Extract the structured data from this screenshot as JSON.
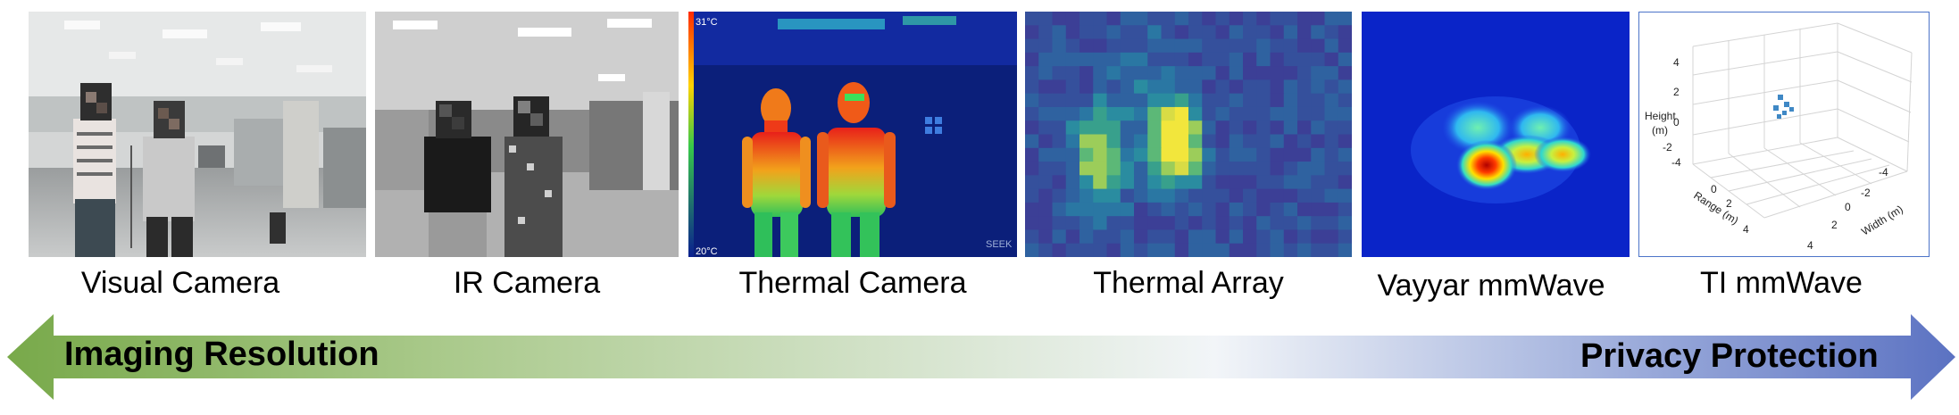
{
  "panels": [
    {
      "id": "visual",
      "caption": "Visual Camera"
    },
    {
      "id": "ir",
      "caption": "IR Camera"
    },
    {
      "id": "thermal-camera",
      "caption": "Thermal Camera",
      "temp_max": "31°C",
      "temp_min": "20°C",
      "brand": "SEEK"
    },
    {
      "id": "thermal-array",
      "caption": "Thermal Array"
    },
    {
      "id": "vayyar",
      "caption": "Vayyar mmWave"
    },
    {
      "id": "ti",
      "caption": "TI mmWave",
      "plot": {
        "z_label_line1": "Height",
        "z_label_line2": "(m)",
        "z_ticks": [
          "4",
          "2",
          "0",
          "-2",
          "-4"
        ],
        "range_label": "Range (m)",
        "range_ticks": [
          "0",
          "2",
          "4"
        ],
        "width_label": "Width (m)",
        "width_ticks": [
          "-4",
          "-2",
          "0",
          "2",
          "4"
        ]
      }
    }
  ],
  "arrow": {
    "left_label": "Imaging Resolution",
    "right_label": "Privacy Protection",
    "colors": {
      "left": "#78a94a",
      "middle": "#f2f5f8",
      "right": "#5b72c2"
    }
  }
}
